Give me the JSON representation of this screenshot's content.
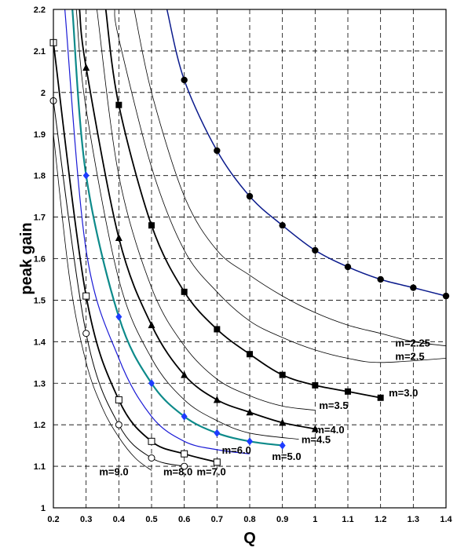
{
  "chart_data": {
    "type": "line",
    "title": "",
    "xlabel": "Q",
    "ylabel": "peak gain",
    "xlim": [
      0.2,
      1.4
    ],
    "ylim": [
      1.0,
      2.2
    ],
    "xticks": [
      "0.2",
      "0.3",
      "0.4",
      "0.5",
      "0.6",
      "0.7",
      "0.8",
      "0.9",
      "1",
      "1.1",
      "1.2",
      "1.3",
      "1.4"
    ],
    "yticks": [
      "1",
      "1.1",
      "1.2",
      "1.3",
      "1.4",
      "1.5",
      "1.6",
      "1.7",
      "1.8",
      "1.9",
      "2",
      "2.1",
      "2.2"
    ],
    "grid": "dashed",
    "colors": {
      "navy": "#0a1a8c",
      "teal": "#0d8a8a",
      "blue": "#1a1ad6",
      "black": "#000000",
      "marker_blue": "#1e3cff"
    },
    "series": [
      {
        "name": "m=2.25",
        "color": "#0a1a8c",
        "width": 1.5,
        "marker": "circle-filled",
        "x": [
          0.6,
          0.7,
          0.8,
          0.9,
          1.0,
          1.1,
          1.2,
          1.3,
          1.4
        ],
        "y": [
          2.03,
          1.86,
          1.75,
          1.68,
          1.62,
          1.58,
          1.55,
          1.53,
          1.51
        ],
        "curve": [
          [
            0.547,
            2.2
          ],
          [
            0.6,
            2.03
          ],
          [
            0.7,
            1.86
          ],
          [
            0.8,
            1.75
          ],
          [
            0.9,
            1.68
          ],
          [
            1.0,
            1.62
          ],
          [
            1.1,
            1.58
          ],
          [
            1.2,
            1.55
          ],
          [
            1.3,
            1.53
          ],
          [
            1.4,
            1.51
          ]
        ]
      },
      {
        "name": "m=2.25",
        "color": "#000000",
        "width": 0.8,
        "marker": "none",
        "label": "m=2.25",
        "curve": [
          [
            0.447,
            2.2
          ],
          [
            0.5,
            2.0
          ],
          [
            0.6,
            1.75
          ],
          [
            0.7,
            1.62
          ],
          [
            0.8,
            1.56
          ],
          [
            0.9,
            1.51
          ],
          [
            1.0,
            1.47
          ],
          [
            1.1,
            1.44
          ],
          [
            1.2,
            1.42
          ],
          [
            1.3,
            1.4
          ],
          [
            1.4,
            1.39
          ]
        ]
      },
      {
        "name": "m=2.5",
        "color": "#000000",
        "width": 0.8,
        "marker": "none",
        "label": "m=2.5",
        "curve": [
          [
            0.387,
            2.2
          ],
          [
            0.4,
            2.13
          ],
          [
            0.5,
            1.82
          ],
          [
            0.6,
            1.62
          ],
          [
            0.7,
            1.52
          ],
          [
            0.8,
            1.45
          ],
          [
            0.9,
            1.41
          ],
          [
            1.0,
            1.38
          ],
          [
            1.1,
            1.36
          ],
          [
            1.2,
            1.35
          ],
          [
            1.4,
            1.36
          ]
        ]
      },
      {
        "name": "m=3.0",
        "color": "#000000",
        "width": 1.8,
        "marker": "square-filled",
        "label": "m=3.0",
        "x": [
          0.4,
          0.5,
          0.6,
          0.7,
          0.8,
          0.9,
          1.0,
          1.1,
          1.2
        ],
        "y": [
          1.97,
          1.68,
          1.52,
          1.43,
          1.37,
          1.32,
          1.295,
          1.28,
          1.265
        ],
        "curve": [
          [
            0.36,
            2.2
          ],
          [
            0.4,
            1.97
          ],
          [
            0.5,
            1.68
          ],
          [
            0.6,
            1.52
          ],
          [
            0.7,
            1.43
          ],
          [
            0.8,
            1.37
          ],
          [
            0.9,
            1.32
          ],
          [
            1.0,
            1.295
          ],
          [
            1.1,
            1.28
          ],
          [
            1.2,
            1.265
          ]
        ]
      },
      {
        "name": "m=3.5",
        "color": "#000000",
        "width": 0.8,
        "marker": "none",
        "label": "m=3.5",
        "curve": [
          [
            0.333,
            2.2
          ],
          [
            0.4,
            1.8
          ],
          [
            0.5,
            1.53
          ],
          [
            0.6,
            1.39
          ],
          [
            0.7,
            1.31
          ],
          [
            0.8,
            1.27
          ],
          [
            0.9,
            1.245
          ],
          [
            1.0,
            1.235
          ]
        ]
      },
      {
        "name": "m=4.0",
        "color": "#000000",
        "width": 1.8,
        "marker": "triangle-filled",
        "label": "m=4.0",
        "x": [
          0.3,
          0.4,
          0.5,
          0.6,
          0.7,
          0.8,
          0.9,
          1.0
        ],
        "y": [
          2.06,
          1.65,
          1.44,
          1.32,
          1.26,
          1.23,
          1.205,
          1.19
        ],
        "curve": [
          [
            0.28,
            2.2
          ],
          [
            0.3,
            2.06
          ],
          [
            0.4,
            1.65
          ],
          [
            0.5,
            1.44
          ],
          [
            0.6,
            1.32
          ],
          [
            0.7,
            1.26
          ],
          [
            0.8,
            1.23
          ],
          [
            0.9,
            1.205
          ],
          [
            1.0,
            1.19
          ]
        ]
      },
      {
        "name": "m=4.5",
        "color": "#000000",
        "width": 0.8,
        "marker": "none",
        "label": "m=4.5",
        "curve": [
          [
            0.27,
            2.2
          ],
          [
            0.3,
            1.96
          ],
          [
            0.4,
            1.55
          ],
          [
            0.5,
            1.36
          ],
          [
            0.6,
            1.26
          ],
          [
            0.7,
            1.21
          ],
          [
            0.8,
            1.18
          ],
          [
            0.95,
            1.165
          ]
        ]
      },
      {
        "name": "m=5.0",
        "color": "#0d8a8a",
        "width": 2.2,
        "marker": "diamond-blue",
        "label": "m=5.0",
        "x": [
          0.3,
          0.4,
          0.5,
          0.6,
          0.7,
          0.8,
          0.9
        ],
        "y": [
          1.8,
          1.46,
          1.3,
          1.22,
          1.18,
          1.16,
          1.15
        ],
        "curve": [
          [
            0.258,
            2.2
          ],
          [
            0.3,
            1.8
          ],
          [
            0.4,
            1.46
          ],
          [
            0.5,
            1.3
          ],
          [
            0.6,
            1.22
          ],
          [
            0.7,
            1.18
          ],
          [
            0.8,
            1.16
          ],
          [
            0.9,
            1.15
          ]
        ]
      },
      {
        "name": "m=6.0",
        "color": "#1a1ad6",
        "width": 1.2,
        "marker": "none",
        "label": "m=6.0",
        "curve": [
          [
            0.235,
            2.2
          ],
          [
            0.3,
            1.62
          ],
          [
            0.4,
            1.36
          ],
          [
            0.5,
            1.22
          ],
          [
            0.6,
            1.16
          ],
          [
            0.7,
            1.14
          ],
          [
            0.8,
            1.13
          ]
        ]
      },
      {
        "name": "m=7.0",
        "color": "#000000",
        "width": 1.8,
        "marker": "square-open",
        "label": "m=7.0",
        "x": [
          0.2,
          0.3,
          0.4,
          0.5,
          0.6,
          0.7
        ],
        "y": [
          2.12,
          1.51,
          1.26,
          1.16,
          1.13,
          1.11
        ],
        "curve": [
          [
            0.2,
            2.12
          ],
          [
            0.3,
            1.51
          ],
          [
            0.4,
            1.26
          ],
          [
            0.5,
            1.16
          ],
          [
            0.6,
            1.13
          ],
          [
            0.7,
            1.11
          ]
        ]
      },
      {
        "name": "m=8.0",
        "color": "#000000",
        "width": 1.0,
        "marker": "circle-open",
        "label": "m=8.0",
        "x": [
          0.2,
          0.3,
          0.4,
          0.5,
          0.6
        ],
        "y": [
          1.98,
          1.42,
          1.2,
          1.12,
          1.1
        ],
        "curve": [
          [
            0.2,
            1.98
          ],
          [
            0.3,
            1.42
          ],
          [
            0.4,
            1.2
          ],
          [
            0.5,
            1.12
          ],
          [
            0.6,
            1.1
          ]
        ]
      },
      {
        "name": "m=9.0",
        "color": "#000000",
        "width": 0.8,
        "marker": "none",
        "label": "m=9.0",
        "curve": [
          [
            0.2,
            1.9
          ],
          [
            0.25,
            1.55
          ],
          [
            0.3,
            1.35
          ],
          [
            0.35,
            1.24
          ],
          [
            0.4,
            1.17
          ],
          [
            0.45,
            1.12
          ],
          [
            0.5,
            1.09
          ]
        ]
      }
    ],
    "labels": [
      {
        "text": "m=2.25",
        "x": 1.245,
        "y": 1.388
      },
      {
        "text": "m=2.5",
        "x": 1.245,
        "y": 1.356
      },
      {
        "text": "m=3.0",
        "x": 1.225,
        "y": 1.268
      },
      {
        "text": "m=3.5",
        "x": 1.012,
        "y": 1.238
      },
      {
        "text": "m=4.0",
        "x": 1.0,
        "y": 1.18
      },
      {
        "text": "m=4.5",
        "x": 0.958,
        "y": 1.156
      },
      {
        "text": "m=5.0",
        "x": 0.868,
        "y": 1.115
      },
      {
        "text": "m=6.0",
        "x": 0.715,
        "y": 1.13
      },
      {
        "text": "m=7.0",
        "x": 0.638,
        "y": 1.078
      },
      {
        "text": "m=8.0",
        "x": 0.536,
        "y": 1.078
      },
      {
        "text": "m=9.0",
        "x": 0.34,
        "y": 1.078
      }
    ]
  }
}
